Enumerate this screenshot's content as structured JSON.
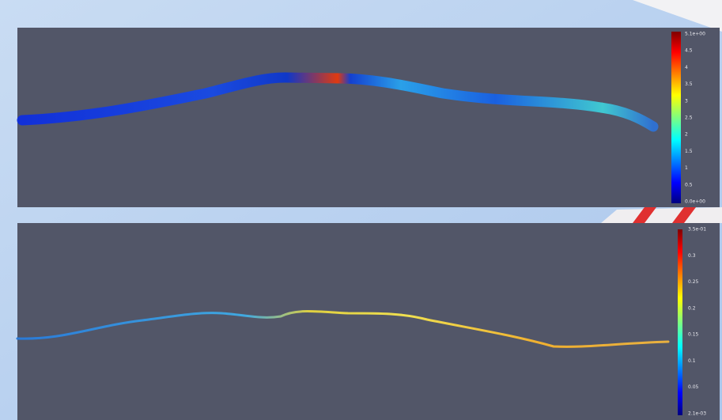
{
  "panels": [
    {
      "colorbar": {
        "labels": [
          "5.1e+00",
          "4.5",
          "4",
          "3.5",
          "3",
          "2.5",
          "2",
          "1.5",
          "1",
          "0.5",
          "0.0e+00"
        ]
      }
    },
    {
      "colorbar": {
        "labels": [
          "3.5e-01",
          "0.3",
          "0.25",
          "0.2",
          "0.15",
          "0.1",
          "0.05",
          "2.1e-03"
        ]
      }
    }
  ]
}
